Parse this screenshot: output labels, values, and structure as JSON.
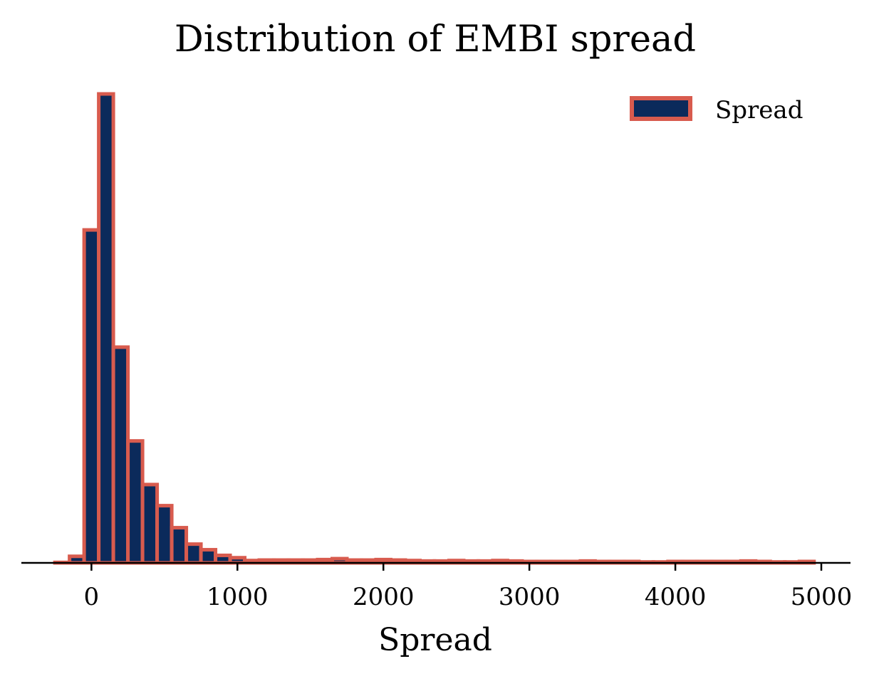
{
  "chart_data": {
    "type": "bar",
    "title": "Distribution of EMBI spread",
    "xlabel": "Spread",
    "ylabel": "",
    "xlim": [
      -480,
      5200
    ],
    "ylim": [
      0,
      1.0
    ],
    "y_axis_shown": false,
    "grid": false,
    "bin_width": 100,
    "xticks": [
      0,
      1000,
      2000,
      3000,
      4000,
      5000
    ],
    "xtick_labels": [
      "0",
      "1000",
      "2000",
      "3000",
      "4000",
      "5000"
    ],
    "bin_starts": [
      -250,
      -150,
      -50,
      50,
      150,
      250,
      350,
      450,
      550,
      650,
      750,
      850,
      950,
      1050,
      1150,
      1250,
      1350,
      1450,
      1550,
      1650,
      1750,
      1850,
      1950,
      2050,
      2150,
      2250,
      2350,
      2450,
      2550,
      2650,
      2750,
      2850,
      2950,
      3050,
      3150,
      3250,
      3350,
      3450,
      3550,
      3650,
      3750,
      3850,
      3950,
      4050,
      4150,
      4250,
      4350,
      4450,
      4550,
      4650,
      4750,
      4850
    ],
    "values": [
      0.001,
      0.014,
      0.71,
      1.0,
      0.46,
      0.26,
      0.167,
      0.122,
      0.075,
      0.04,
      0.028,
      0.016,
      0.011,
      0.005,
      0.006,
      0.006,
      0.006,
      0.006,
      0.007,
      0.009,
      0.006,
      0.006,
      0.007,
      0.006,
      0.005,
      0.004,
      0.004,
      0.005,
      0.004,
      0.004,
      0.005,
      0.004,
      0.003,
      0.003,
      0.003,
      0.003,
      0.004,
      0.003,
      0.003,
      0.003,
      0.002,
      0.002,
      0.003,
      0.003,
      0.003,
      0.003,
      0.003,
      0.004,
      0.003,
      0.002,
      0.002,
      0.003
    ],
    "series": [
      {
        "name": "Spread",
        "color": "#0b2a5b",
        "edge_color": "#d85b4e"
      }
    ],
    "legend": {
      "placement": "top-right",
      "labels": [
        "Spread"
      ]
    }
  }
}
